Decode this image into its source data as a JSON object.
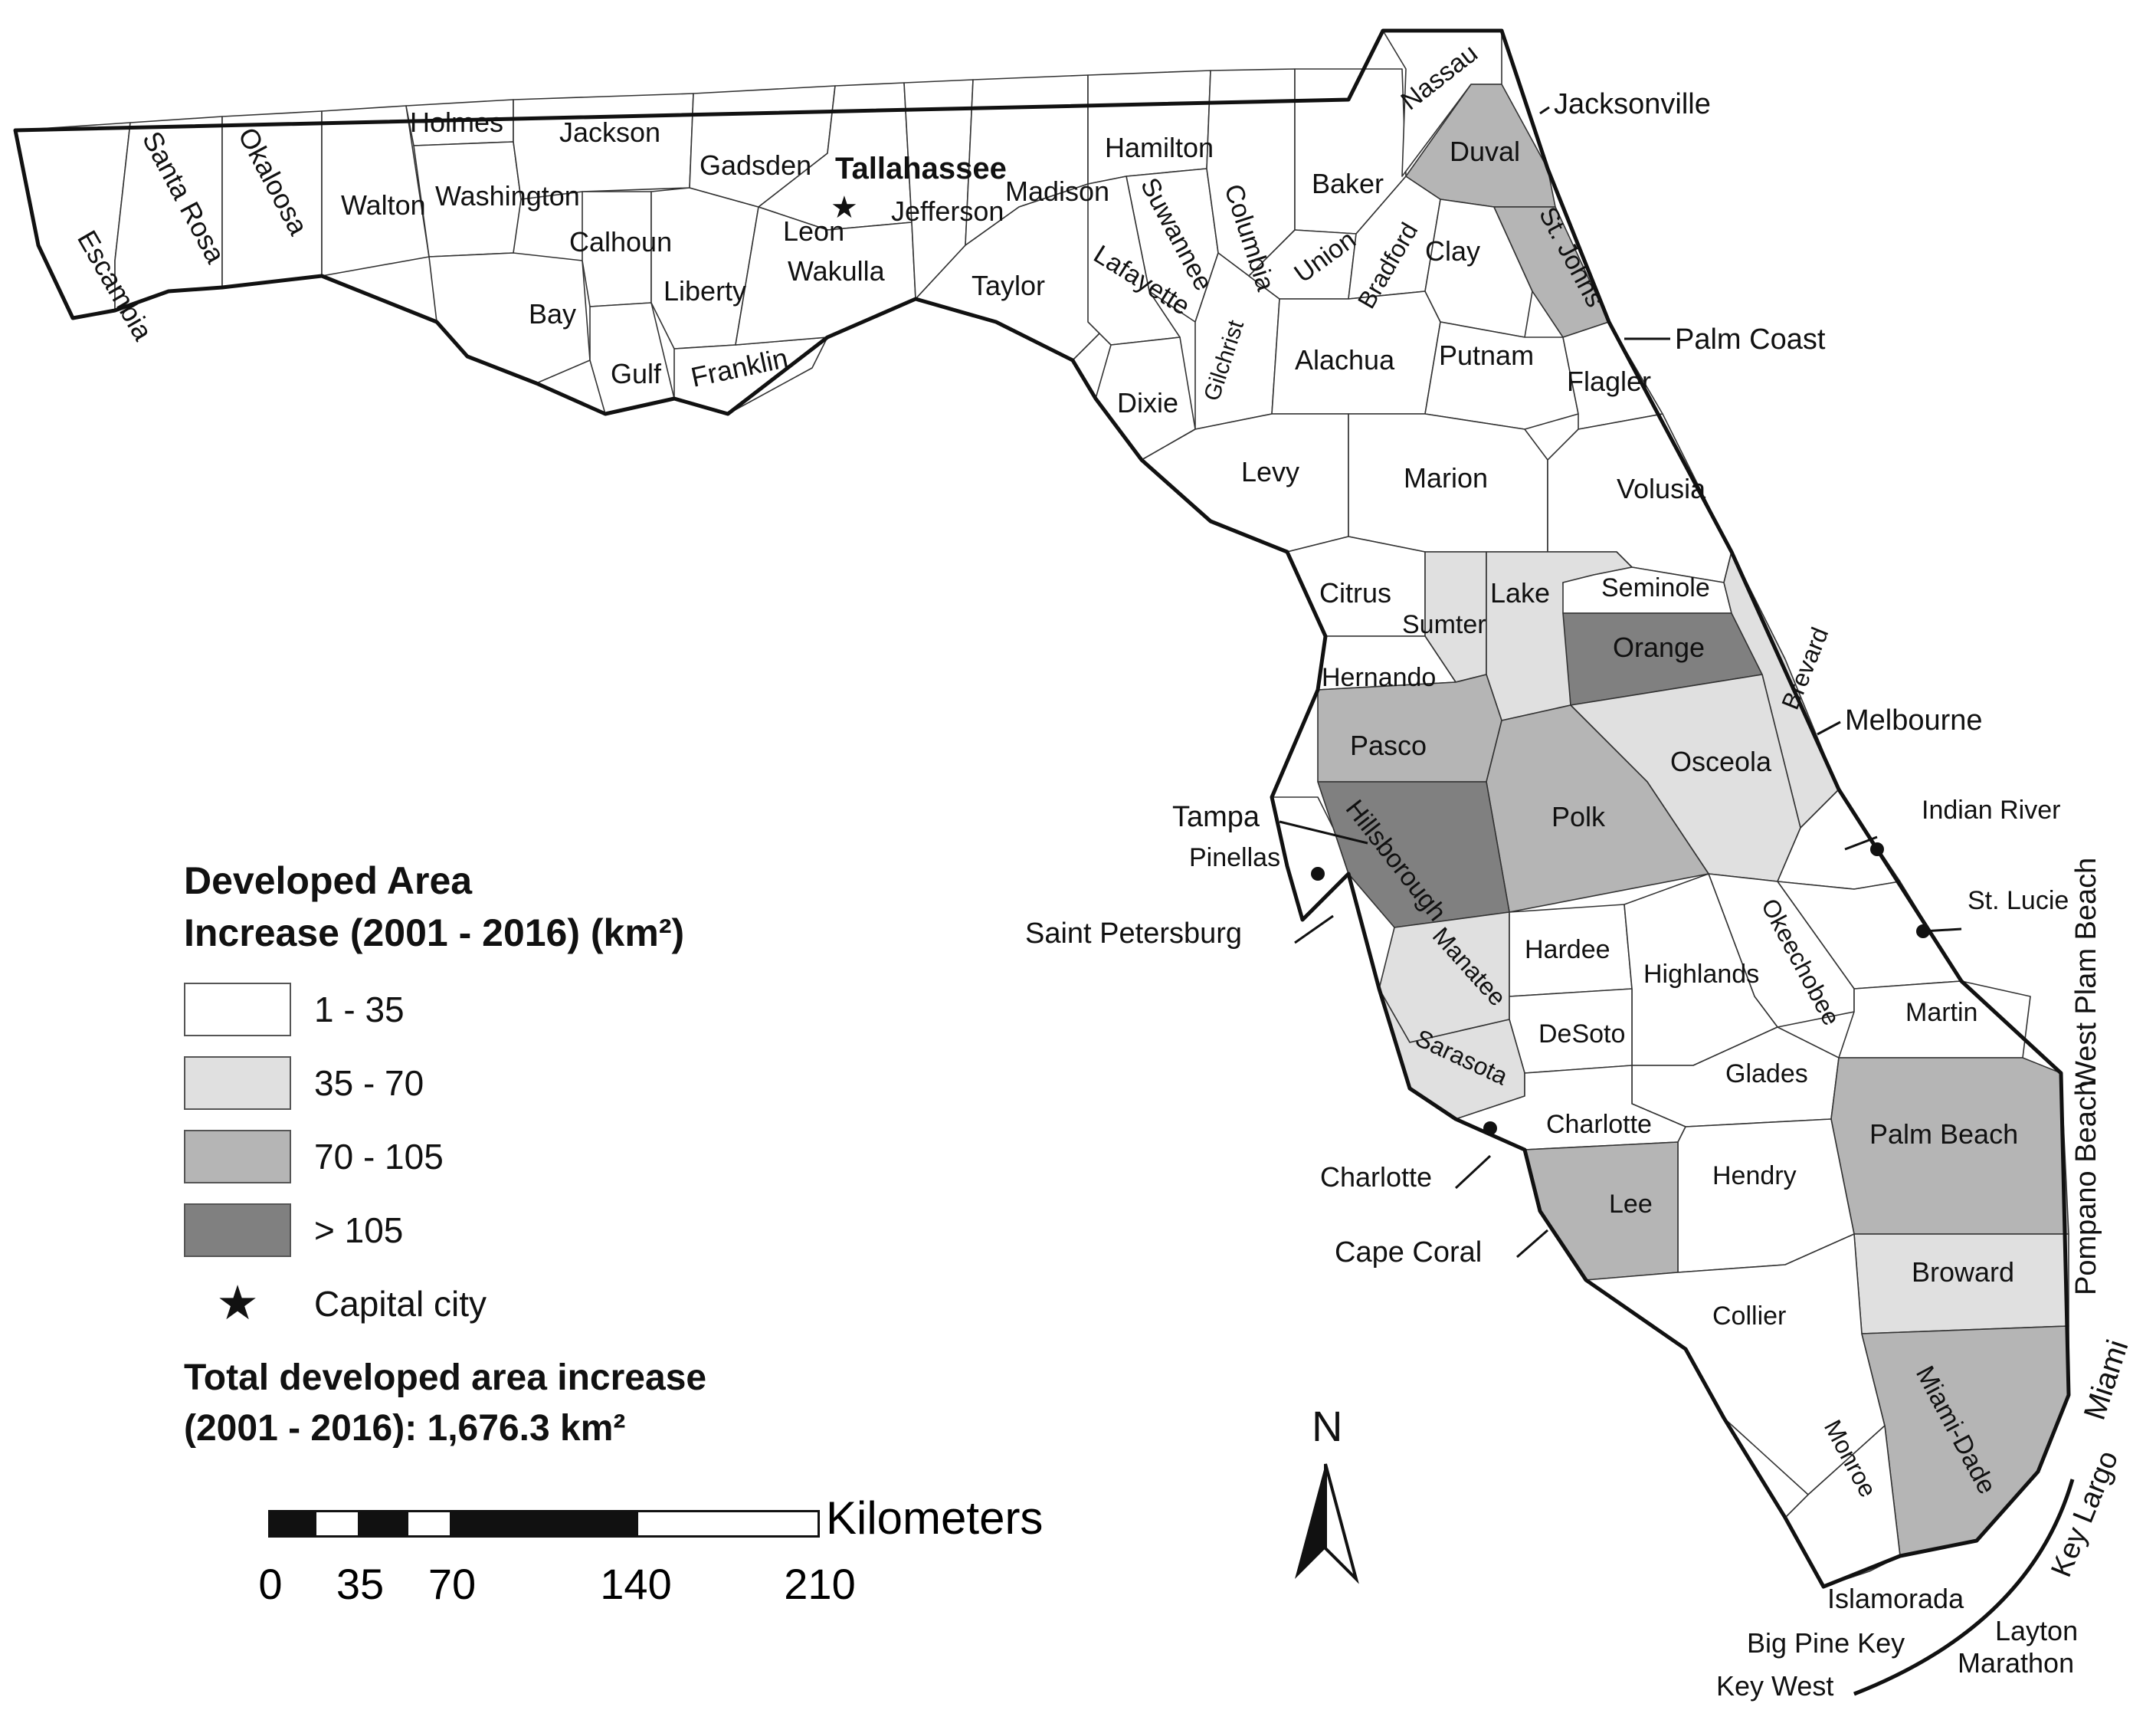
{
  "colors": {
    "c1": "#ffffff",
    "c2": "#e0e0e0",
    "c3": "#b5b5b5",
    "c4": "#808080"
  },
  "legend": {
    "title_line1": "Developed Area",
    "title_line2": "Increase (2001 - 2016) (km²)",
    "classes": [
      {
        "label": "1 - 35",
        "color": "#ffffff"
      },
      {
        "label": "35 - 70",
        "color": "#e0e0e0"
      },
      {
        "label": "70 - 105",
        "color": "#b5b5b5"
      },
      {
        "label": "> 105",
        "color": "#808080"
      }
    ],
    "capital_symbol": "★",
    "capital_label": "Capital city",
    "total_line1": "Total developed area increase",
    "total_line2": "(2001 - 2016): 1,676.3 km²"
  },
  "scale": {
    "unit": "Kilometers",
    "ticks": [
      "0",
      "35",
      "70",
      "140",
      "210"
    ]
  },
  "north": "N",
  "capital": "Tallahassee",
  "counties": [
    {
      "name": "Escambia",
      "class": 1
    },
    {
      "name": "Santa Rosa",
      "class": 1
    },
    {
      "name": "Okaloosa",
      "class": 1
    },
    {
      "name": "Walton",
      "class": 1
    },
    {
      "name": "Holmes",
      "class": 1
    },
    {
      "name": "Washington",
      "class": 1
    },
    {
      "name": "Jackson",
      "class": 1
    },
    {
      "name": "Bay",
      "class": 1
    },
    {
      "name": "Calhoun",
      "class": 1
    },
    {
      "name": "Gulf",
      "class": 1
    },
    {
      "name": "Liberty",
      "class": 1
    },
    {
      "name": "Franklin",
      "class": 1
    },
    {
      "name": "Gadsden",
      "class": 1
    },
    {
      "name": "Leon",
      "class": 1
    },
    {
      "name": "Wakulla",
      "class": 1
    },
    {
      "name": "Jefferson",
      "class": 1
    },
    {
      "name": "Madison",
      "class": 1
    },
    {
      "name": "Taylor",
      "class": 1
    },
    {
      "name": "Hamilton",
      "class": 1
    },
    {
      "name": "Suwannee",
      "class": 1
    },
    {
      "name": "Lafayette",
      "class": 1
    },
    {
      "name": "Dixie",
      "class": 1
    },
    {
      "name": "Columbia",
      "class": 1
    },
    {
      "name": "Gilchrist",
      "class": 1
    },
    {
      "name": "Baker",
      "class": 1
    },
    {
      "name": "Union",
      "class": 1
    },
    {
      "name": "Bradford",
      "class": 1
    },
    {
      "name": "Nassau",
      "class": 1
    },
    {
      "name": "Duval",
      "class": 3
    },
    {
      "name": "Clay",
      "class": 1
    },
    {
      "name": "St. Johns",
      "class": 3
    },
    {
      "name": "Alachua",
      "class": 1
    },
    {
      "name": "Putnam",
      "class": 1
    },
    {
      "name": "Flagler",
      "class": 1
    },
    {
      "name": "Levy",
      "class": 1
    },
    {
      "name": "Marion",
      "class": 1
    },
    {
      "name": "Volusia",
      "class": 1
    },
    {
      "name": "Citrus",
      "class": 1
    },
    {
      "name": "Sumter",
      "class": 2
    },
    {
      "name": "Lake",
      "class": 2
    },
    {
      "name": "Seminole",
      "class": 1
    },
    {
      "name": "Orange",
      "class": 4
    },
    {
      "name": "Hernando",
      "class": 1
    },
    {
      "name": "Pasco",
      "class": 3
    },
    {
      "name": "Brevard",
      "class": 2
    },
    {
      "name": "Osceola",
      "class": 2
    },
    {
      "name": "Polk",
      "class": 3
    },
    {
      "name": "Hillsborough",
      "class": 4
    },
    {
      "name": "Pinellas",
      "class": 1
    },
    {
      "name": "Indian River",
      "class": 1
    },
    {
      "name": "St. Lucie",
      "class": 1
    },
    {
      "name": "Okeechobee",
      "class": 1
    },
    {
      "name": "Manatee",
      "class": 2
    },
    {
      "name": "Hardee",
      "class": 1
    },
    {
      "name": "Highlands",
      "class": 1
    },
    {
      "name": "DeSoto",
      "class": 1
    },
    {
      "name": "Sarasota",
      "class": 2
    },
    {
      "name": "Martin",
      "class": 1
    },
    {
      "name": "Glades",
      "class": 1
    },
    {
      "name": "Charlotte",
      "class": 1
    },
    {
      "name": "Palm Beach",
      "class": 3
    },
    {
      "name": "Hendry",
      "class": 1
    },
    {
      "name": "Lee",
      "class": 3
    },
    {
      "name": "Broward",
      "class": 2
    },
    {
      "name": "Collier",
      "class": 1
    },
    {
      "name": "Miami-Dade",
      "class": 3
    },
    {
      "name": "Monroe",
      "class": 1
    }
  ],
  "cities": [
    "Jacksonville",
    "Palm Coast",
    "Melbourne",
    "Tampa",
    "Saint Petersburg",
    "Charlotte",
    "Cape Coral",
    "West Plam Beach",
    "Pompano Beach",
    "Miami",
    "Key Largo",
    "Islamorada",
    "Big Pine Key",
    "Key West",
    "Layton",
    "Marathon"
  ]
}
